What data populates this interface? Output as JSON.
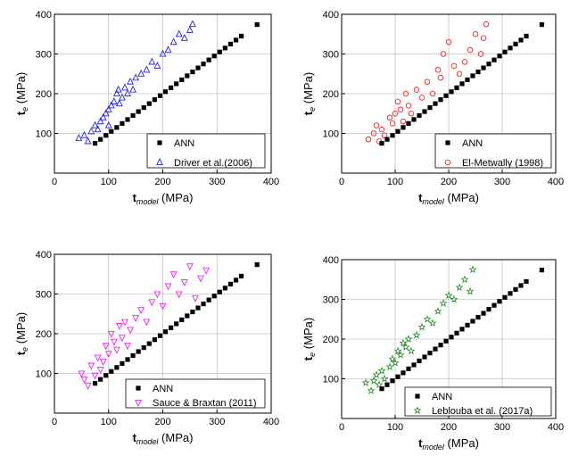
{
  "chart_data": [
    {
      "type": "scatter",
      "xlabel": {
        "main": "t",
        "sub": "model",
        "unit": " (MPa)"
      },
      "ylabel": {
        "main": "t",
        "sub": "e",
        "unit": " (MPa)"
      },
      "xlim": [
        0,
        400
      ],
      "ylim": [
        0,
        400
      ],
      "xticks": [
        0,
        100,
        200,
        300,
        400
      ],
      "yticks": [
        100,
        200,
        300,
        400
      ],
      "grid": true,
      "legend_position": "bottom-right",
      "series": [
        {
          "name": "ANN",
          "marker": "square",
          "color": "#000000",
          "x": [
            75,
            85,
            95,
            105,
            115,
            125,
            135,
            145,
            155,
            165,
            175,
            185,
            195,
            205,
            215,
            225,
            235,
            245,
            255,
            265,
            275,
            285,
            295,
            305,
            315,
            325,
            335,
            345,
            374
          ],
          "y": [
            75,
            85,
            95,
            105,
            115,
            125,
            135,
            145,
            155,
            165,
            175,
            185,
            195,
            205,
            215,
            225,
            235,
            245,
            255,
            265,
            275,
            285,
            295,
            305,
            315,
            325,
            335,
            345,
            374
          ]
        },
        {
          "name": "Driver et al.(2006)",
          "marker": "triangle-up",
          "color": "#2222ee",
          "x": [
            45,
            55,
            62,
            68,
            75,
            80,
            85,
            90,
            95,
            100,
            100,
            105,
            110,
            115,
            118,
            120,
            125,
            130,
            135,
            140,
            145,
            150,
            160,
            170,
            180,
            190,
            200,
            210,
            220,
            230,
            240,
            250,
            255
          ],
          "y": [
            88,
            95,
            80,
            105,
            120,
            110,
            130,
            140,
            150,
            120,
            160,
            170,
            180,
            200,
            210,
            175,
            190,
            215,
            200,
            230,
            210,
            240,
            250,
            260,
            280,
            270,
            300,
            310,
            330,
            350,
            340,
            360,
            375
          ]
        }
      ]
    },
    {
      "type": "scatter",
      "xlabel": {
        "main": "t",
        "sub": "model",
        "unit": " (MPa)"
      },
      "ylabel": {
        "main": "t",
        "sub": "e",
        "unit": " (MPa)"
      },
      "xlim": [
        0,
        400
      ],
      "ylim": [
        0,
        400
      ],
      "xticks": [
        0,
        100,
        200,
        300,
        400
      ],
      "yticks": [
        100,
        200,
        300,
        400
      ],
      "grid": true,
      "legend_position": "bottom-right",
      "series": [
        {
          "name": "ANN",
          "marker": "square",
          "color": "#000000",
          "x": [
            75,
            85,
            95,
            105,
            115,
            125,
            135,
            145,
            155,
            165,
            175,
            185,
            195,
            205,
            215,
            225,
            235,
            245,
            255,
            265,
            275,
            285,
            295,
            305,
            315,
            325,
            335,
            345,
            374
          ],
          "y": [
            75,
            85,
            95,
            105,
            115,
            125,
            135,
            145,
            155,
            165,
            175,
            185,
            195,
            205,
            215,
            225,
            235,
            245,
            255,
            265,
            275,
            285,
            295,
            305,
            315,
            325,
            335,
            345,
            374
          ]
        },
        {
          "name": "El-Metwally (1998)",
          "marker": "circle",
          "color": "#ee2222",
          "x": [
            50,
            60,
            65,
            70,
            75,
            80,
            90,
            95,
            100,
            105,
            110,
            115,
            120,
            125,
            130,
            140,
            150,
            160,
            170,
            180,
            185,
            190,
            200,
            210,
            220,
            230,
            240,
            250,
            260,
            265,
            270
          ],
          "y": [
            85,
            100,
            120,
            80,
            110,
            95,
            140,
            125,
            150,
            180,
            160,
            130,
            200,
            170,
            150,
            210,
            190,
            230,
            200,
            260,
            240,
            300,
            330,
            270,
            250,
            280,
            310,
            350,
            300,
            340,
            375
          ]
        }
      ]
    },
    {
      "type": "scatter",
      "xlabel": {
        "main": "t",
        "sub": "model",
        "unit": " (MPa)"
      },
      "ylabel": {
        "main": "t",
        "sub": "e",
        "unit": " (MPa)"
      },
      "xlim": [
        0,
        400
      ],
      "ylim": [
        0,
        400
      ],
      "xticks": [
        0,
        100,
        200,
        300,
        400
      ],
      "yticks": [
        100,
        200,
        300,
        400
      ],
      "grid": true,
      "legend_position": "bottom-right",
      "series": [
        {
          "name": "ANN",
          "marker": "square",
          "color": "#000000",
          "x": [
            75,
            85,
            95,
            105,
            115,
            125,
            135,
            145,
            155,
            165,
            175,
            185,
            195,
            205,
            215,
            225,
            235,
            245,
            255,
            265,
            275,
            285,
            295,
            305,
            315,
            325,
            335,
            345,
            374
          ],
          "y": [
            75,
            85,
            95,
            105,
            115,
            125,
            135,
            145,
            155,
            165,
            175,
            185,
            195,
            205,
            215,
            225,
            235,
            245,
            255,
            265,
            275,
            285,
            295,
            305,
            315,
            325,
            335,
            345,
            374
          ]
        },
        {
          "name": "Sauce & Braxtan (2011)",
          "marker": "triangle-down",
          "color": "#ee22ee",
          "x": [
            50,
            55,
            62,
            68,
            75,
            80,
            85,
            90,
            95,
            100,
            105,
            110,
            115,
            120,
            125,
            130,
            135,
            140,
            150,
            160,
            170,
            180,
            190,
            200,
            210,
            220,
            230,
            240,
            250,
            260,
            270,
            280
          ],
          "y": [
            100,
            85,
            70,
            120,
            95,
            140,
            110,
            130,
            170,
            150,
            200,
            180,
            160,
            220,
            190,
            230,
            170,
            210,
            240,
            260,
            230,
            280,
            300,
            270,
            320,
            350,
            300,
            330,
            370,
            290,
            340,
            360
          ]
        }
      ]
    },
    {
      "type": "scatter",
      "xlabel": {
        "main": "t",
        "sub": "model",
        "unit": " (MPa)"
      },
      "ylabel": {
        "main": "t",
        "sub": "e",
        "unit": " (MPa)"
      },
      "xlim": [
        0,
        400
      ],
      "ylim": [
        0,
        400
      ],
      "xticks": [
        0,
        100,
        200,
        300,
        400
      ],
      "yticks": [
        100,
        200,
        300,
        400
      ],
      "grid": true,
      "legend_position": "bottom-right",
      "series": [
        {
          "name": "ANN",
          "marker": "square",
          "color": "#000000",
          "x": [
            75,
            85,
            95,
            105,
            115,
            125,
            135,
            145,
            155,
            165,
            175,
            185,
            195,
            205,
            215,
            225,
            235,
            245,
            255,
            265,
            275,
            285,
            295,
            305,
            315,
            325,
            335,
            345,
            374
          ],
          "y": [
            75,
            85,
            95,
            105,
            115,
            125,
            135,
            145,
            155,
            165,
            175,
            185,
            195,
            205,
            215,
            225,
            235,
            245,
            255,
            265,
            275,
            285,
            295,
            305,
            315,
            325,
            335,
            345,
            374
          ]
        },
        {
          "name": "Leblouba et al. (2017a)",
          "marker": "star",
          "color": "#228822",
          "x": [
            45,
            55,
            60,
            65,
            70,
            75,
            80,
            90,
            95,
            100,
            105,
            110,
            115,
            120,
            125,
            130,
            140,
            150,
            160,
            170,
            180,
            190,
            200,
            210,
            220,
            230,
            240,
            245
          ],
          "y": [
            90,
            70,
            95,
            110,
            85,
            120,
            100,
            130,
            150,
            140,
            170,
            160,
            190,
            180,
            200,
            170,
            210,
            230,
            250,
            240,
            270,
            290,
            310,
            300,
            330,
            350,
            320,
            375
          ]
        }
      ]
    }
  ]
}
